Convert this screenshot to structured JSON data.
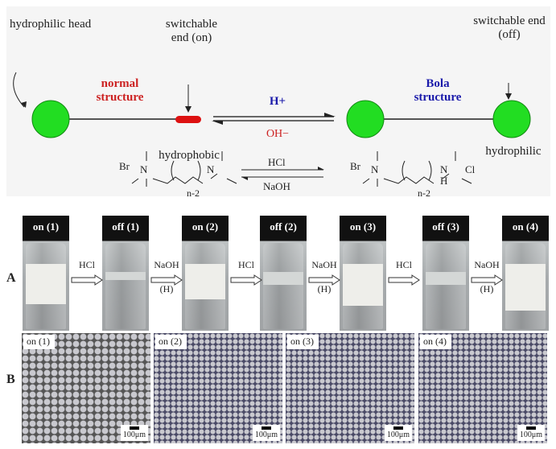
{
  "scheme": {
    "hydrophilic_head": "hydrophilic head",
    "switchable_on": "switchable end (on)",
    "switchable_off": "switchable end (off)",
    "normal": "normal structure",
    "bola": "Bola structure",
    "hydrophobic": "hydrophobic",
    "hydrophilic": "hydrophilic",
    "acid": "H+",
    "base": "OH−",
    "colors": {
      "head": "#22dd22",
      "tail": "#dd1111",
      "normal": "#cc2222",
      "bola": "#1a1aaa"
    }
  },
  "reaction": {
    "left_counterion": "Br",
    "left_n1": "N",
    "left_n2": "N",
    "subscript": "n-2",
    "right_counterion1": "Br",
    "right_n1": "N",
    "right_n2": "N",
    "right_h": "H",
    "right_counterion2": "Cl",
    "forward": "HCl",
    "reverse": "NaOH"
  },
  "panel_a": {
    "label": "A",
    "vials": [
      "on (1)",
      "off (1)",
      "on (2)",
      "off (2)",
      "on (3)",
      "off (3)",
      "on (4)"
    ],
    "steps": [
      {
        "reagent": "HCl",
        "note": ""
      },
      {
        "reagent": "NaOH",
        "note": "(H)"
      },
      {
        "reagent": "HCl",
        "note": ""
      },
      {
        "reagent": "NaOH",
        "note": "(H)"
      },
      {
        "reagent": "HCl",
        "note": ""
      },
      {
        "reagent": "NaOH",
        "note": "(H)"
      }
    ]
  },
  "panel_b": {
    "label": "B",
    "images": [
      "on (1)",
      "on (2)",
      "on (3)",
      "on (4)"
    ],
    "scale_bar": "100μm"
  }
}
